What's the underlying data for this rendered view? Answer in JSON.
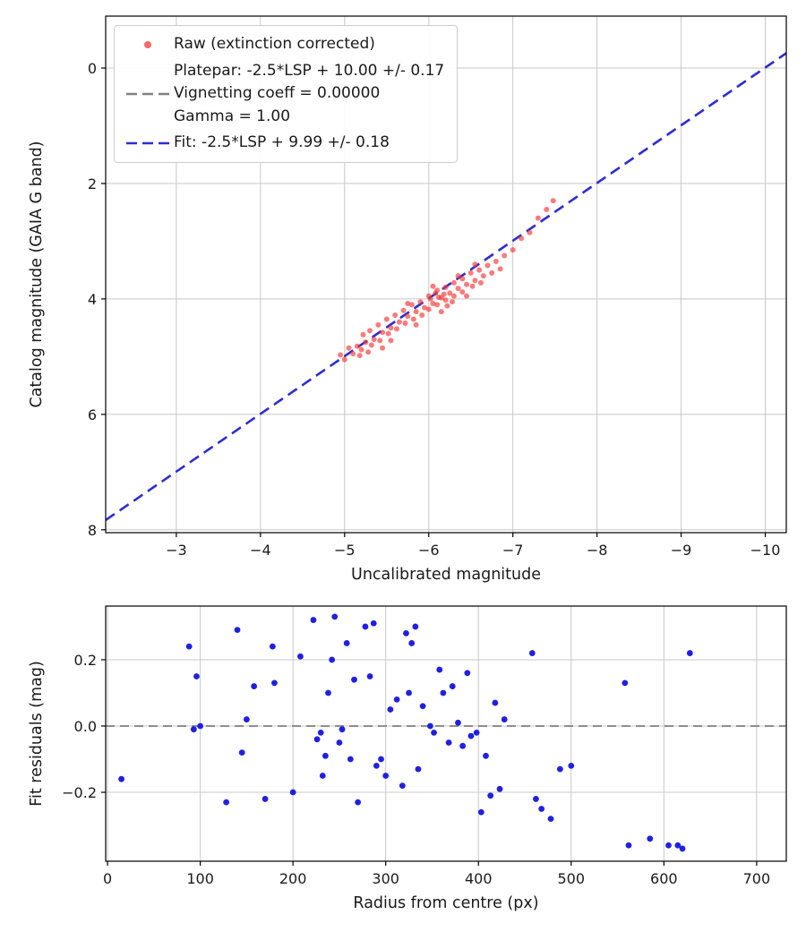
{
  "legend": {
    "raw_label": "Raw (extinction corrected)",
    "platepar_label": "Platepar: -2.5*LSP + 10.00 +/- 0.17\nVignetting coeff = 0.00000\nGamma = 1.00",
    "fit_label": "Fit: -2.5*LSP + 9.99 +/- 0.18"
  },
  "colors": {
    "raw_marker": "rgba(244,54,54,0.65)",
    "platepar_line": "#7f7f7f",
    "fit_line": "#2b2bdb",
    "residual_marker": "#2020e0",
    "zero_line": "#7f7f7f",
    "grid": "#c8c8c8",
    "frame": "#000000"
  },
  "chart_data": [
    {
      "type": "scatter",
      "title": "",
      "xlabel": "Uncalibrated magnitude",
      "ylabel": "Catalog magnitude (GAIA G band)",
      "xlim": [
        -2.16,
        -10.25
      ],
      "ylim": [
        -0.9,
        8.05
      ],
      "xticks": [
        -3,
        -4,
        -5,
        -6,
        -7,
        -8,
        -9,
        -10
      ],
      "xtick_labels": [
        "−3",
        "−4",
        "−5",
        "−6",
        "−7",
        "−8",
        "−9",
        "−10"
      ],
      "yticks": [
        0,
        2,
        4,
        6,
        8
      ],
      "ytick_labels": [
        "0",
        "2",
        "4",
        "6",
        "8"
      ],
      "grid": true,
      "legend_position": "upper left",
      "series": [
        {
          "name": "Platepar: -2.5*LSP + 10.00 +/- 0.17 Vignetting coeff = 0.00000 Gamma = 1.00",
          "type": "line",
          "style": "dashed",
          "color": "#7f7f7f",
          "width": 2.0,
          "slope": 1.0,
          "intercept": 10.0
        },
        {
          "name": "Fit: -2.5*LSP + 9.99 +/- 0.18",
          "type": "line",
          "style": "dashed",
          "color": "#2b2bdb",
          "width": 2.4,
          "slope": 1.0,
          "intercept": 9.99
        },
        {
          "name": "Raw (extinction corrected)",
          "type": "scatter",
          "color": "rgba(244,54,54,0.65)",
          "marker_radius": 3,
          "points": [
            [
              -4.95,
              4.97
            ],
            [
              -5.0,
              5.05
            ],
            [
              -5.05,
              4.85
            ],
            [
              -5.1,
              4.95
            ],
            [
              -5.15,
              4.82
            ],
            [
              -5.18,
              4.98
            ],
            [
              -5.2,
              4.88
            ],
            [
              -5.22,
              4.62
            ],
            [
              -5.25,
              4.75
            ],
            [
              -5.28,
              4.92
            ],
            [
              -5.3,
              4.55
            ],
            [
              -5.32,
              4.8
            ],
            [
              -5.35,
              4.7
            ],
            [
              -5.4,
              4.45
            ],
            [
              -5.42,
              4.72
            ],
            [
              -5.45,
              4.58
            ],
            [
              -5.45,
              4.85
            ],
            [
              -5.5,
              4.35
            ],
            [
              -5.52,
              4.6
            ],
            [
              -5.55,
              4.5
            ],
            [
              -5.55,
              4.72
            ],
            [
              -5.6,
              4.28
            ],
            [
              -5.62,
              4.52
            ],
            [
              -5.65,
              4.4
            ],
            [
              -5.7,
              4.2
            ],
            [
              -5.72,
              4.42
            ],
            [
              -5.75,
              4.3
            ],
            [
              -5.75,
              4.08
            ],
            [
              -5.8,
              4.1
            ],
            [
              -5.82,
              4.35
            ],
            [
              -5.85,
              4.22
            ],
            [
              -5.85,
              4.45
            ],
            [
              -5.9,
              4.05
            ],
            [
              -5.92,
              4.28
            ],
            [
              -5.95,
              4.15
            ],
            [
              -6.0,
              3.95
            ],
            [
              -6.0,
              4.18
            ],
            [
              -6.02,
              4.0
            ],
            [
              -6.05,
              4.08
            ],
            [
              -6.05,
              3.78
            ],
            [
              -6.08,
              3.9
            ],
            [
              -6.1,
              3.85
            ],
            [
              -6.1,
              4.1
            ],
            [
              -6.12,
              3.97
            ],
            [
              -6.15,
              3.98
            ],
            [
              -6.15,
              4.22
            ],
            [
              -6.18,
              3.92
            ],
            [
              -6.2,
              3.8
            ],
            [
              -6.2,
              4.02
            ],
            [
              -6.22,
              4.12
            ],
            [
              -6.25,
              3.9
            ],
            [
              -6.28,
              4.05
            ],
            [
              -6.3,
              3.72
            ],
            [
              -6.3,
              3.95
            ],
            [
              -6.35,
              3.82
            ],
            [
              -6.35,
              3.6
            ],
            [
              -6.4,
              3.65
            ],
            [
              -6.4,
              3.88
            ],
            [
              -6.45,
              3.75
            ],
            [
              -6.45,
              3.95
            ],
            [
              -6.5,
              3.55
            ],
            [
              -6.52,
              3.78
            ],
            [
              -6.55,
              3.68
            ],
            [
              -6.55,
              3.4
            ],
            [
              -6.6,
              3.5
            ],
            [
              -6.62,
              3.72
            ],
            [
              -6.65,
              3.6
            ],
            [
              -6.7,
              3.42
            ],
            [
              -6.75,
              3.55
            ],
            [
              -6.8,
              3.35
            ],
            [
              -6.85,
              3.48
            ],
            [
              -6.9,
              3.25
            ],
            [
              -7.0,
              3.15
            ],
            [
              -7.1,
              2.95
            ],
            [
              -7.2,
              2.85
            ],
            [
              -7.3,
              2.6
            ],
            [
              -7.4,
              2.45
            ],
            [
              -7.48,
              2.3
            ]
          ]
        }
      ]
    },
    {
      "type": "scatter",
      "title": "",
      "xlabel": "Radius from centre (px)",
      "ylabel": "Fit residuals (mag)",
      "xlim": [
        -2,
        732
      ],
      "ylim": [
        0.362,
        -0.408
      ],
      "xticks": [
        0,
        100,
        200,
        300,
        400,
        500,
        600,
        700
      ],
      "xtick_labels": [
        "0",
        "100",
        "200",
        "300",
        "400",
        "500",
        "600",
        "700"
      ],
      "yticks": [
        0.2,
        0.0,
        -0.2
      ],
      "ytick_labels": [
        "0.2",
        "0.0",
        "−0.2"
      ],
      "grid": true,
      "hline": {
        "y": 0.0,
        "color": "#7f7f7f",
        "style": "dashed",
        "width": 1.8
      },
      "series": [
        {
          "name": "Fit residuals",
          "type": "scatter",
          "color": "#2020e0",
          "marker_radius": 3.4,
          "points": [
            [
              15,
              -0.16
            ],
            [
              88,
              0.24
            ],
            [
              93,
              -0.01
            ],
            [
              96,
              0.15
            ],
            [
              100,
              0.0
            ],
            [
              128,
              -0.23
            ],
            [
              140,
              0.29
            ],
            [
              145,
              -0.08
            ],
            [
              150,
              0.02
            ],
            [
              158,
              0.12
            ],
            [
              170,
              -0.22
            ],
            [
              178,
              0.24
            ],
            [
              180,
              0.13
            ],
            [
              200,
              -0.2
            ],
            [
              208,
              0.21
            ],
            [
              222,
              0.32
            ],
            [
              226,
              -0.04
            ],
            [
              230,
              -0.02
            ],
            [
              232,
              -0.15
            ],
            [
              235,
              -0.09
            ],
            [
              238,
              0.1
            ],
            [
              242,
              0.2
            ],
            [
              245,
              0.33
            ],
            [
              250,
              -0.05
            ],
            [
              253,
              -0.01
            ],
            [
              258,
              0.25
            ],
            [
              262,
              -0.1
            ],
            [
              266,
              0.14
            ],
            [
              270,
              -0.23
            ],
            [
              278,
              0.3
            ],
            [
              283,
              0.15
            ],
            [
              287,
              0.31
            ],
            [
              290,
              -0.12
            ],
            [
              295,
              -0.1
            ],
            [
              300,
              -0.15
            ],
            [
              305,
              0.05
            ],
            [
              312,
              0.08
            ],
            [
              318,
              -0.18
            ],
            [
              322,
              0.28
            ],
            [
              325,
              0.1
            ],
            [
              328,
              0.25
            ],
            [
              332,
              0.3
            ],
            [
              335,
              -0.13
            ],
            [
              340,
              0.06
            ],
            [
              348,
              0.0
            ],
            [
              352,
              -0.02
            ],
            [
              358,
              0.17
            ],
            [
              362,
              0.1
            ],
            [
              368,
              -0.05
            ],
            [
              372,
              0.12
            ],
            [
              378,
              0.01
            ],
            [
              383,
              -0.06
            ],
            [
              388,
              0.16
            ],
            [
              392,
              -0.03
            ],
            [
              398,
              -0.02
            ],
            [
              403,
              -0.26
            ],
            [
              408,
              -0.09
            ],
            [
              413,
              -0.21
            ],
            [
              418,
              0.07
            ],
            [
              423,
              -0.19
            ],
            [
              428,
              0.02
            ],
            [
              458,
              0.22
            ],
            [
              462,
              -0.22
            ],
            [
              468,
              -0.25
            ],
            [
              478,
              -0.28
            ],
            [
              488,
              -0.13
            ],
            [
              500,
              -0.12
            ],
            [
              558,
              0.13
            ],
            [
              562,
              -0.36
            ],
            [
              585,
              -0.34
            ],
            [
              605,
              -0.36
            ],
            [
              615,
              -0.36
            ],
            [
              620,
              -0.37
            ],
            [
              628,
              0.22
            ]
          ]
        }
      ]
    }
  ]
}
